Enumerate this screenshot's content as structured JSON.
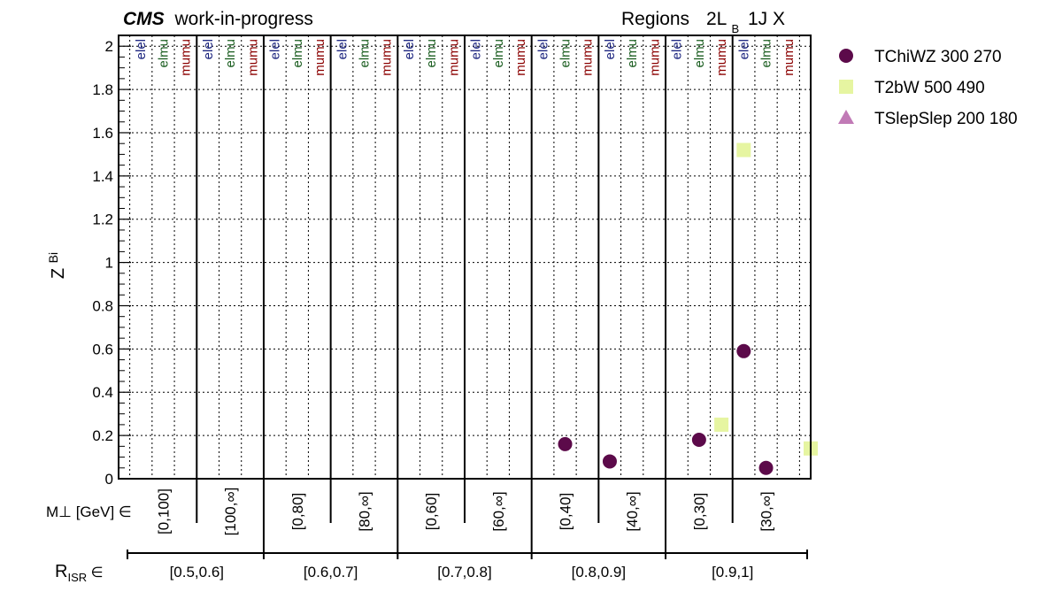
{
  "header": {
    "cms": "CMS",
    "work": "work-in-progress",
    "regions": "Regions",
    "category_main": "2L",
    "category_sub": "B",
    "category_rest": "1J  X"
  },
  "chart_data": {
    "type": "scatter",
    "ylabel_main": "Z",
    "ylabel_sub": "Bi",
    "ylim": [
      0,
      2.05
    ],
    "yticks": [
      "0",
      "0.2",
      "0.4",
      "0.6",
      "0.8",
      "1",
      "1.2",
      "1.4",
      "1.6",
      "1.8",
      "2"
    ],
    "grid": true,
    "legend_position": "right",
    "flavors": [
      "elel",
      "elmu",
      "mumu"
    ],
    "flavor_colors": [
      "#1a237e",
      "#1b5e20",
      "#8b0000"
    ],
    "mperp_label_main": "M",
    "mperp_label_rest": " [GeV] ∈",
    "mperp_bins": [
      "[0,100]",
      "[100,∞]",
      "[0,80]",
      "[80,∞]",
      "[0,60]",
      "[60,∞]",
      "[0,40]",
      "[40,∞]",
      "[0,30]",
      "[30,∞]"
    ],
    "risr_label_main": "R",
    "risr_label_sub": "ISR",
    "risr_label_rest": " ∈",
    "risr_bins": [
      "[0.5,0.6]",
      "[0.6,0.7]",
      "[0.7,0.8]",
      "[0.8,0.9]",
      "[0.9,1]"
    ],
    "series": [
      {
        "name": "TChiWZ 300 270",
        "marker": "circle",
        "color": "#5c0a4a",
        "points": [
          {
            "bin": 20,
            "y": 0.16
          },
          {
            "bin": 22,
            "y": 0.08
          },
          {
            "bin": 26,
            "y": 0.18
          },
          {
            "bin": 28,
            "y": 0.59
          },
          {
            "bin": 29,
            "y": 0.05
          }
        ]
      },
      {
        "name": "T2bW 500 490",
        "marker": "square",
        "color": "#e6f5a1",
        "points": [
          {
            "bin": 27,
            "y": 0.25
          },
          {
            "bin": 28,
            "y": 1.52
          },
          {
            "bin": 31,
            "y": 0.14
          }
        ]
      },
      {
        "name": "TSlepSlep 200 180",
        "marker": "triangle",
        "color": "#c17ab6",
        "points": []
      }
    ]
  }
}
